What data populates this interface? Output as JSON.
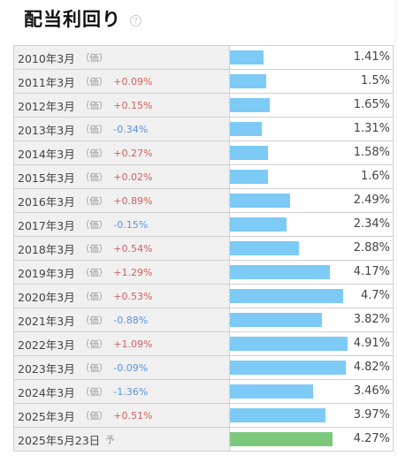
{
  "header": {
    "title": "配当利回り",
    "help_glyph": "?"
  },
  "colors": {
    "actual_bar": "#7ccaf5",
    "forecast_bar": "#7cc87c",
    "increase": "#d06060",
    "decrease": "#5b93dc"
  },
  "scale_max_percent": 6.85,
  "rows": [
    {
      "period": "2010年3月",
      "kind": "（価）",
      "change": "",
      "direction": "none",
      "value": 1.41,
      "value_label": "1.41%",
      "forecast": false
    },
    {
      "period": "2011年3月",
      "kind": "（価）",
      "change": "+0.09%",
      "direction": "up",
      "value": 1.5,
      "value_label": "1.5%",
      "forecast": false
    },
    {
      "period": "2012年3月",
      "kind": "（価）",
      "change": "+0.15%",
      "direction": "up",
      "value": 1.65,
      "value_label": "1.65%",
      "forecast": false
    },
    {
      "period": "2013年3月",
      "kind": "（価）",
      "change": "-0.34%",
      "direction": "down",
      "value": 1.31,
      "value_label": "1.31%",
      "forecast": false
    },
    {
      "period": "2014年3月",
      "kind": "（価）",
      "change": "+0.27%",
      "direction": "up",
      "value": 1.58,
      "value_label": "1.58%",
      "forecast": false
    },
    {
      "period": "2015年3月",
      "kind": "（価）",
      "change": "+0.02%",
      "direction": "up",
      "value": 1.6,
      "value_label": "1.6%",
      "forecast": false
    },
    {
      "period": "2016年3月",
      "kind": "（価）",
      "change": "+0.89%",
      "direction": "up",
      "value": 2.49,
      "value_label": "2.49%",
      "forecast": false
    },
    {
      "period": "2017年3月",
      "kind": "（価）",
      "change": "-0.15%",
      "direction": "down",
      "value": 2.34,
      "value_label": "2.34%",
      "forecast": false
    },
    {
      "period": "2018年3月",
      "kind": "（価）",
      "change": "+0.54%",
      "direction": "up",
      "value": 2.88,
      "value_label": "2.88%",
      "forecast": false
    },
    {
      "period": "2019年3月",
      "kind": "（価）",
      "change": "+1.29%",
      "direction": "up",
      "value": 4.17,
      "value_label": "4.17%",
      "forecast": false
    },
    {
      "period": "2020年3月",
      "kind": "（価）",
      "change": "+0.53%",
      "direction": "up",
      "value": 4.7,
      "value_label": "4.7%",
      "forecast": false
    },
    {
      "period": "2021年3月",
      "kind": "（価）",
      "change": "-0.88%",
      "direction": "down",
      "value": 3.82,
      "value_label": "3.82%",
      "forecast": false
    },
    {
      "period": "2022年3月",
      "kind": "（価）",
      "change": "+1.09%",
      "direction": "up",
      "value": 4.91,
      "value_label": "4.91%",
      "forecast": false
    },
    {
      "period": "2023年3月",
      "kind": "（価）",
      "change": "-0.09%",
      "direction": "down",
      "value": 4.82,
      "value_label": "4.82%",
      "forecast": false
    },
    {
      "period": "2024年3月",
      "kind": "（価）",
      "change": "-1.36%",
      "direction": "down",
      "value": 3.46,
      "value_label": "3.46%",
      "forecast": false
    },
    {
      "period": "2025年3月",
      "kind": "（価）",
      "change": "+0.51%",
      "direction": "up",
      "value": 3.97,
      "value_label": "3.97%",
      "forecast": false
    },
    {
      "period": "2025年5月23日",
      "kind": "予",
      "change": "",
      "direction": "none",
      "value": 4.27,
      "value_label": "4.27%",
      "forecast": true
    }
  ]
}
